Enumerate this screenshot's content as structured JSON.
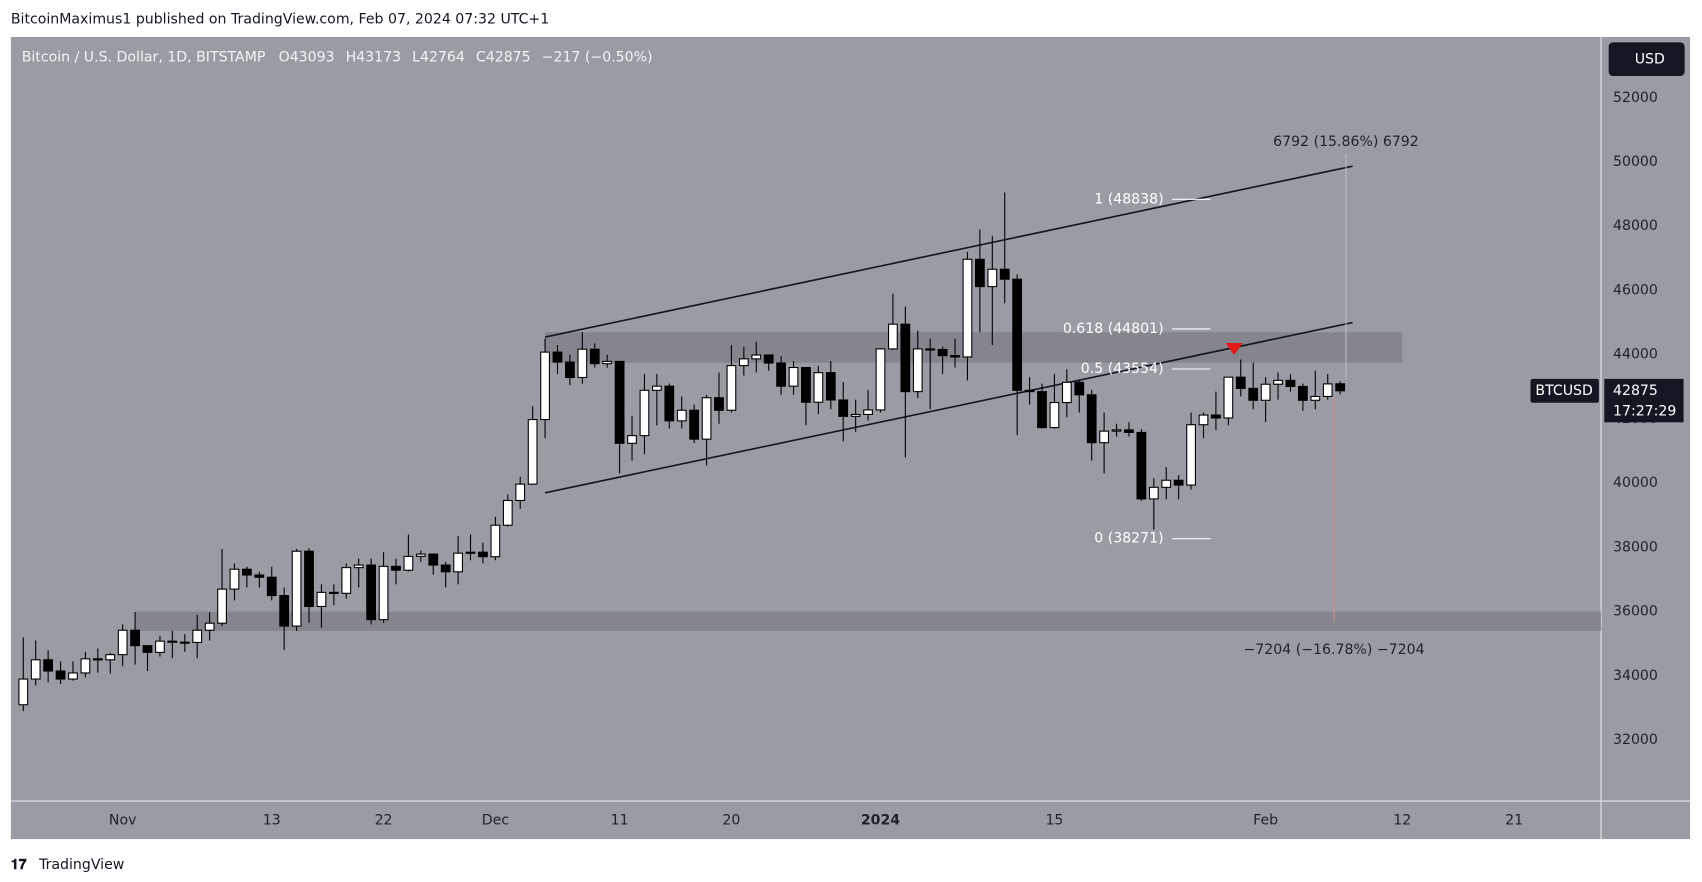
{
  "header": {
    "byline": "BitcoinMaximus1 published on TradingView.com, Feb 07, 2024 07:32 UTC+1",
    "footer": "TradingView"
  },
  "chart_data": {
    "type": "candlestick",
    "title": "Bitcoin / U.S. Dollar, 1D, BITSTAMP",
    "ohlc_labels": [
      "O",
      "H",
      "L",
      "C"
    ],
    "change_label": "−217 (−0.50%)",
    "currency": "USD",
    "symbol": "BTCUSD",
    "countdown": "17:27:29",
    "up_color": "#ffffff",
    "down_color": "#000000",
    "x": [
      "2023-10-24",
      "2023-10-25",
      "2023-10-26",
      "2023-10-27",
      "2023-10-28",
      "2023-10-29",
      "2023-10-30",
      "2023-10-31",
      "2023-11-01",
      "2023-11-02",
      "2023-11-03",
      "2023-11-04",
      "2023-11-05",
      "2023-11-06",
      "2023-11-07",
      "2023-11-08",
      "2023-11-09",
      "2023-11-10",
      "2023-11-11",
      "2023-11-12",
      "2023-11-13",
      "2023-11-14",
      "2023-11-15",
      "2023-11-16",
      "2023-11-17",
      "2023-11-18",
      "2023-11-19",
      "2023-11-20",
      "2023-11-21",
      "2023-11-22",
      "2023-11-23",
      "2023-11-24",
      "2023-11-25",
      "2023-11-26",
      "2023-11-27",
      "2023-11-28",
      "2023-11-29",
      "2023-11-30",
      "2023-12-01",
      "2023-12-02",
      "2023-12-03",
      "2023-12-04",
      "2023-12-05",
      "2023-12-06",
      "2023-12-07",
      "2023-12-08",
      "2023-12-09",
      "2023-12-10",
      "2023-12-11",
      "2023-12-12",
      "2023-12-13",
      "2023-12-14",
      "2023-12-15",
      "2023-12-16",
      "2023-12-17",
      "2023-12-18",
      "2023-12-19",
      "2023-12-20",
      "2023-12-21",
      "2023-12-22",
      "2023-12-23",
      "2023-12-24",
      "2023-12-25",
      "2023-12-26",
      "2023-12-27",
      "2023-12-28",
      "2023-12-29",
      "2023-12-30",
      "2023-12-31",
      "2024-01-01",
      "2024-01-02",
      "2024-01-03",
      "2024-01-04",
      "2024-01-05",
      "2024-01-06",
      "2024-01-07",
      "2024-01-08",
      "2024-01-09",
      "2024-01-10",
      "2024-01-11",
      "2024-01-12",
      "2024-01-13",
      "2024-01-14",
      "2024-01-15",
      "2024-01-16",
      "2024-01-17",
      "2024-01-18",
      "2024-01-19",
      "2024-01-20",
      "2024-01-21",
      "2024-01-22",
      "2024-01-23",
      "2024-01-24",
      "2024-01-25",
      "2024-01-26",
      "2024-01-27",
      "2024-01-28",
      "2024-01-29",
      "2024-01-30",
      "2024-01-31",
      "2024-02-01",
      "2024-02-02",
      "2024-02-03",
      "2024-02-04",
      "2024-02-05",
      "2024-02-06",
      "2024-02-07"
    ],
    "open": [
      33100,
      33900,
      34500,
      34150,
      33900,
      34090,
      34530,
      34500,
      34660,
      35420,
      34940,
      34730,
      35080,
      35050,
      35040,
      35420,
      35640,
      36700,
      37320,
      37140,
      37070,
      36500,
      35550,
      37880,
      36160,
      36600,
      36570,
      37370,
      37450,
      35750,
      37410,
      37290,
      37720,
      37790,
      37450,
      37240,
      37820,
      37850,
      37710,
      38690,
      39460,
      39970,
      41980,
      44080,
      43770,
      43290,
      44170,
      43720,
      43790,
      41240,
      41480,
      42890,
      43020,
      41940,
      42270,
      41370,
      42660,
      42270,
      43660,
      43870,
      43990,
      43740,
      43020,
      43600,
      42520,
      43440,
      42590,
      42080,
      42140,
      42280,
      44180,
      44950,
      42850,
      44180,
      44160,
      43970,
      43930,
      46970,
      46120,
      46660,
      46350,
      42890,
      42850,
      41730,
      42510,
      43140,
      42750,
      41260,
      41620,
      41660,
      41580,
      39510,
      39870,
      40090,
      39940,
      41820,
      42120,
      42030,
      43300,
      42950,
      42580,
      43080,
      43200,
      43010,
      42580,
      42700,
      43093
    ],
    "high": [
      35200,
      35100,
      34800,
      34450,
      34450,
      34750,
      34850,
      34720,
      35600,
      35990,
      34950,
      35250,
      35400,
      35300,
      35900,
      35980,
      37950,
      37500,
      37400,
      37240,
      37400,
      36750,
      37950,
      37970,
      36850,
      36850,
      37500,
      37650,
      37650,
      37850,
      37650,
      38400,
      37900,
      37800,
      37550,
      38350,
      38400,
      38150,
      38950,
      39650,
      40200,
      42400,
      44500,
      44300,
      44000,
      44700,
      44350,
      44000,
      43800,
      42100,
      43400,
      43400,
      43100,
      42700,
      42450,
      42750,
      43450,
      44300,
      44250,
      44400,
      44000,
      43950,
      43800,
      43600,
      43650,
      43800,
      43150,
      42600,
      42900,
      44200,
      45900,
      45500,
      44750,
      44500,
      44250,
      44500,
      47200,
      47900,
      47700,
      49050,
      46500,
      43300,
      43100,
      43400,
      43550,
      43200,
      42900,
      42200,
      41850,
      41900,
      41680,
      40150,
      40500,
      40250,
      42200,
      42200,
      42850,
      43300,
      43850,
      43750,
      43300,
      43450,
      43400,
      43100,
      43500,
      43400,
      43173
    ],
    "low": [
      32900,
      33700,
      33800,
      33750,
      33850,
      33950,
      34100,
      34070,
      34300,
      34350,
      34150,
      34600,
      34550,
      34750,
      34550,
      35100,
      35550,
      36350,
      36750,
      36750,
      36350,
      34800,
      35400,
      35650,
      35500,
      36200,
      36400,
      36750,
      35600,
      35650,
      36850,
      37250,
      37550,
      37150,
      36750,
      36850,
      37600,
      37500,
      37600,
      38650,
      39200,
      39950,
      41400,
      43400,
      43050,
      43100,
      43600,
      43600,
      40300,
      40700,
      40900,
      41800,
      41700,
      41700,
      41250,
      40550,
      41850,
      42200,
      43350,
      43450,
      43500,
      42750,
      42750,
      41800,
      42150,
      42300,
      41300,
      41600,
      41950,
      42200,
      44150,
      40800,
      42650,
      42300,
      43400,
      43600,
      43200,
      44700,
      44300,
      45600,
      41500,
      42450,
      41700,
      41700,
      42050,
      42200,
      40700,
      40300,
      41450,
      41450,
      39450,
      38550,
      39500,
      39500,
      39800,
      41400,
      41650,
      41800,
      42700,
      42300,
      41900,
      42600,
      42850,
      42250,
      42300,
      42600,
      42764
    ],
    "close": [
      33900,
      34500,
      34150,
      33900,
      34090,
      34530,
      34500,
      34660,
      35420,
      34940,
      34730,
      35080,
      35050,
      35040,
      35420,
      35640,
      36700,
      37320,
      37140,
      37070,
      36500,
      35550,
      37880,
      36160,
      36600,
      36570,
      37370,
      37450,
      35750,
      37410,
      37290,
      37720,
      37790,
      37450,
      37240,
      37820,
      37850,
      37710,
      38690,
      39460,
      39970,
      41980,
      44080,
      43770,
      43290,
      44170,
      43720,
      43790,
      41240,
      41480,
      42890,
      43020,
      41940,
      42270,
      41370,
      42660,
      42270,
      43660,
      43870,
      43990,
      43740,
      43020,
      43600,
      42520,
      43440,
      42590,
      42080,
      42140,
      42280,
      44180,
      44950,
      42850,
      44180,
      44160,
      43970,
      43930,
      46970,
      46120,
      46660,
      46350,
      42890,
      42850,
      41730,
      42510,
      43140,
      42750,
      41260,
      41620,
      41660,
      41580,
      39510,
      39870,
      40090,
      39940,
      41820,
      42120,
      42030,
      43300,
      42950,
      42580,
      43080,
      43200,
      43010,
      42580,
      42700,
      43090,
      42875
    ],
    "xlim": [
      "2023-10-23",
      "2024-02-28"
    ],
    "xticks": [
      {
        "value": "2023-11-01",
        "label": "Nov"
      },
      {
        "value": "2023-11-13",
        "label": "13"
      },
      {
        "value": "2023-11-22",
        "label": "22"
      },
      {
        "value": "2023-12-01",
        "label": "Dec"
      },
      {
        "value": "2023-12-11",
        "label": "11"
      },
      {
        "value": "2023-12-20",
        "label": "20"
      },
      {
        "value": "2024-01-01",
        "label": "2024"
      },
      {
        "value": "2024-01-15",
        "label": "15"
      },
      {
        "value": "2024-02-01",
        "label": "Feb"
      },
      {
        "value": "2024-02-12",
        "label": "12"
      },
      {
        "value": "2024-02-21",
        "label": "21"
      }
    ],
    "ylim": [
      30100,
      53860
    ],
    "yticks": [
      32000,
      34000,
      36000,
      38000,
      40000,
      42000,
      44000,
      46000,
      48000,
      50000,
      52000
    ],
    "zones": [
      {
        "from": "2023-12-05",
        "to": "2024-02-12",
        "low": 43750,
        "high": 44700
      },
      {
        "from": "2023-11-02",
        "to": "2024-02-28",
        "low": 35400,
        "high": 36000
      }
    ],
    "trendlines": [
      {
        "from": "2023-12-05",
        "to": "2024-02-08",
        "start": 44550,
        "end": 49870
      },
      {
        "from": "2023-12-05",
        "to": "2024-02-08",
        "start": 39700,
        "end": 45000
      }
    ],
    "fib_levels": [
      {
        "value": 48838,
        "label": "1 (48838)"
      },
      {
        "value": 44801,
        "label": "0.618 (44801)"
      },
      {
        "value": 43554,
        "label": "0.5 (43554)"
      },
      {
        "value": 38271,
        "label": "0 (38271)"
      }
    ],
    "annotations": [
      "6792 (15.86%) 6792",
      "−7204 (−16.78%) −7204"
    ]
  }
}
